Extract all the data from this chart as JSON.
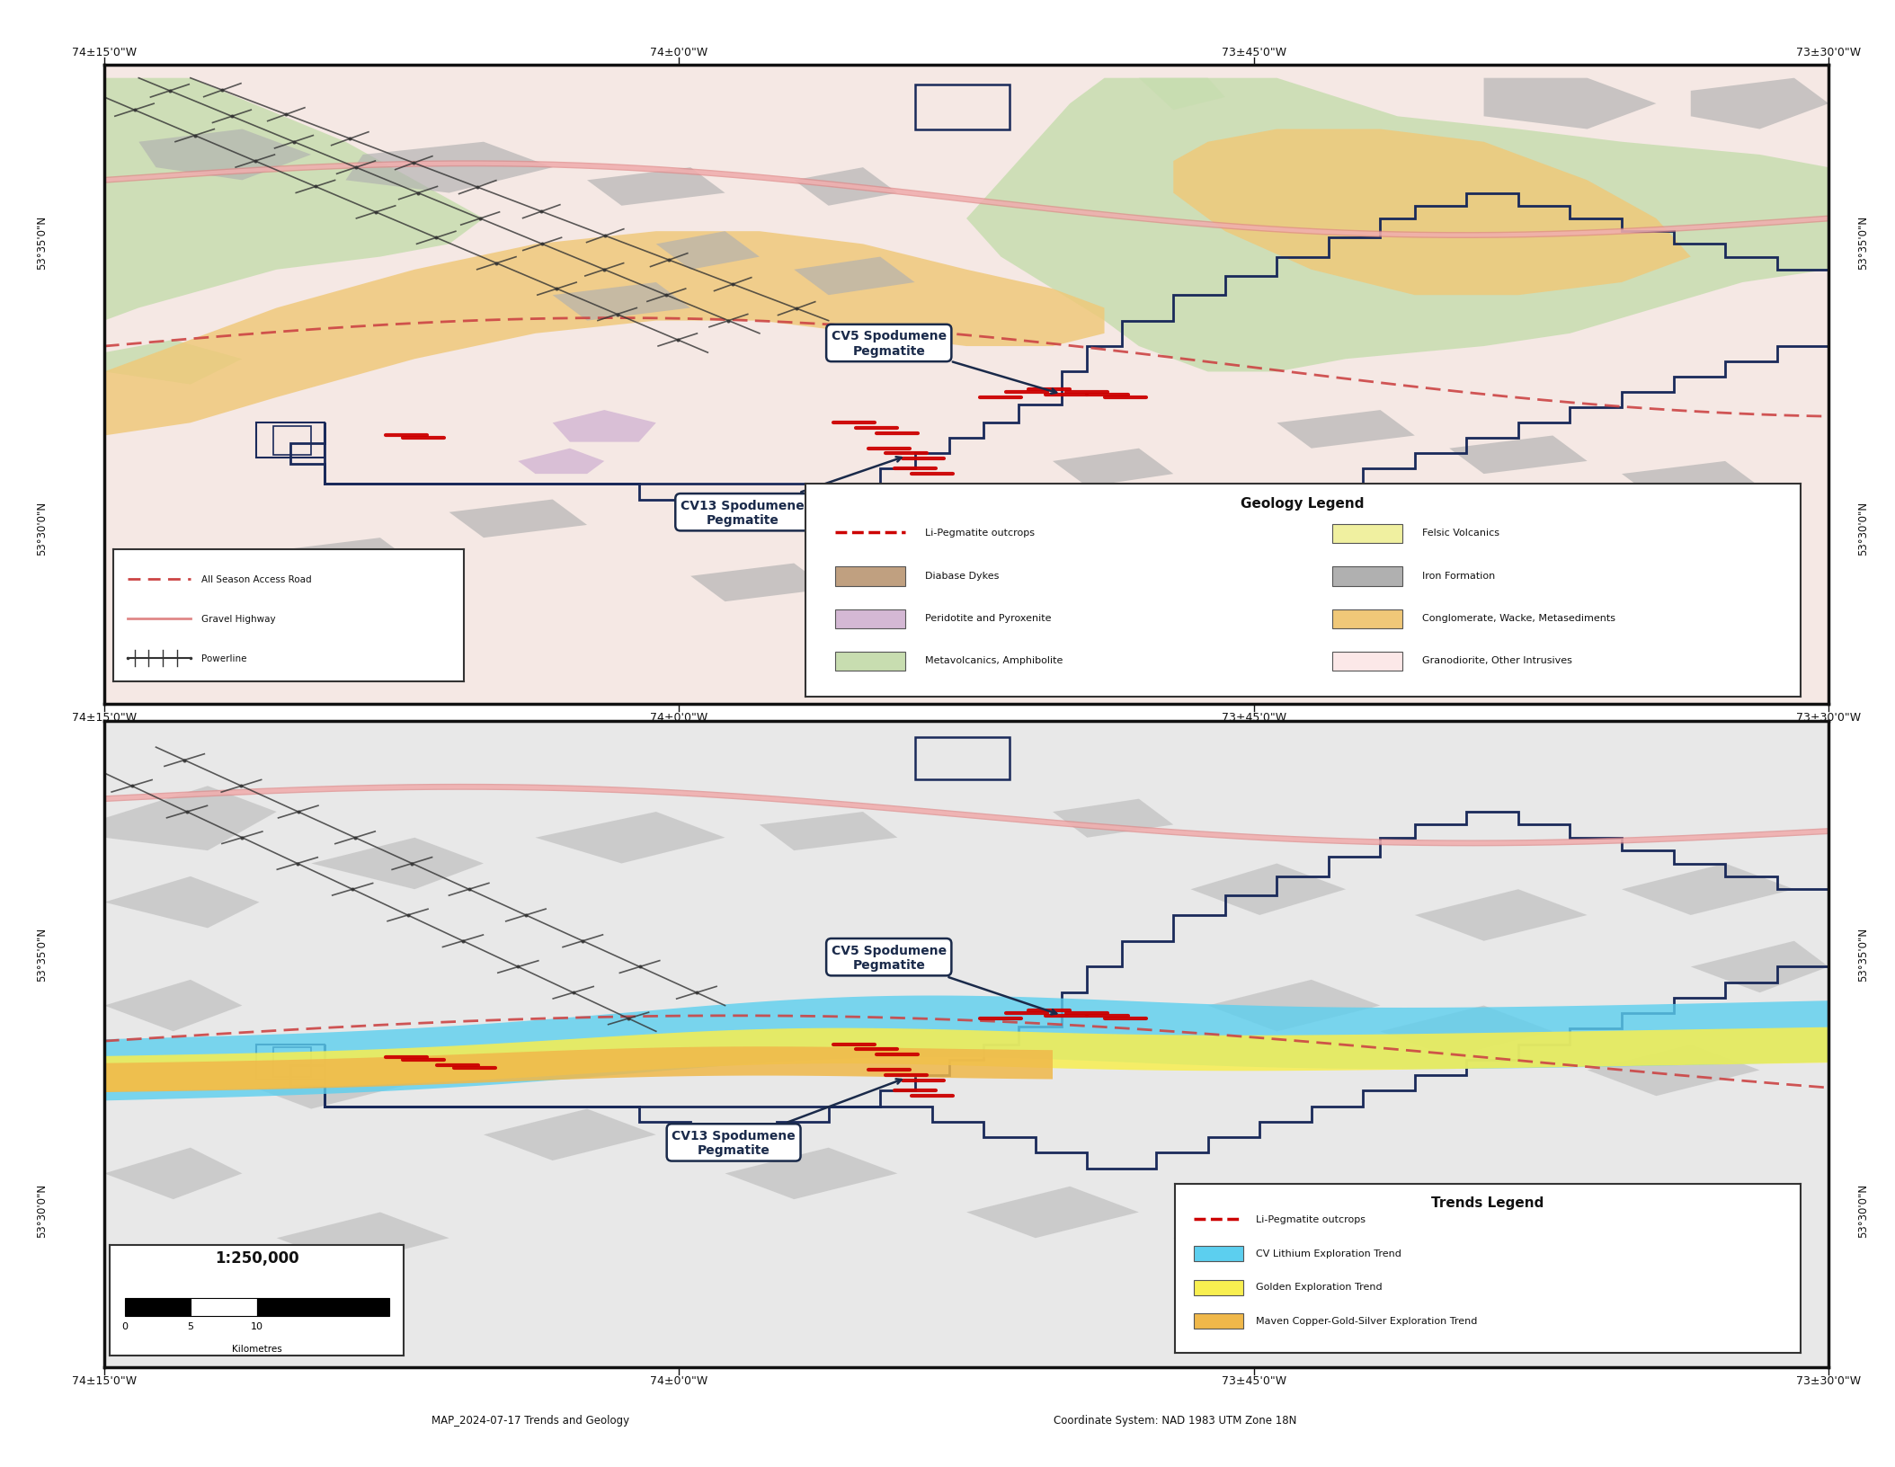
{
  "map_title_bottom": "MAP_2024-07-17 Trends and Geology",
  "coord_system": "Coordinate System: NAD 1983 UTM Zone 18N",
  "scale_text": "1:250,000",
  "lon_labels": [
    "74±15'0\"W",
    "74±0'0\"W",
    "73±45'0\"W",
    "73±30'0\"W"
  ],
  "background_color": "#ffffff",
  "map_bg_top": "#f5e8e4",
  "map_bg_bottom": "#e8e8e8",
  "geo_colors": {
    "metavolcanics": "#c8ddb0",
    "conglomerate": "#f0c878",
    "iron_formation": "#b0b0b0",
    "peridotite": "#d4b8d4",
    "granodiorite": "#fce8e8",
    "felsic_volcanics": "#f0f0a0",
    "diabase": "#c0a080"
  },
  "trend_colors": {
    "cv_lithium": "#5ccfef",
    "golden": "#f8ef50",
    "maven_copper": "#f0b84a"
  },
  "cv5_label": "CV5 Spodumene\nPegmatite",
  "cv13_label": "CV13 Spodumene\nPegmatite",
  "annotation_color": "#1a2a4a",
  "road_color": "#cc4444",
  "highway_color": "#e08888",
  "powerline_color": "#333333",
  "border_color": "#1a2a5a"
}
